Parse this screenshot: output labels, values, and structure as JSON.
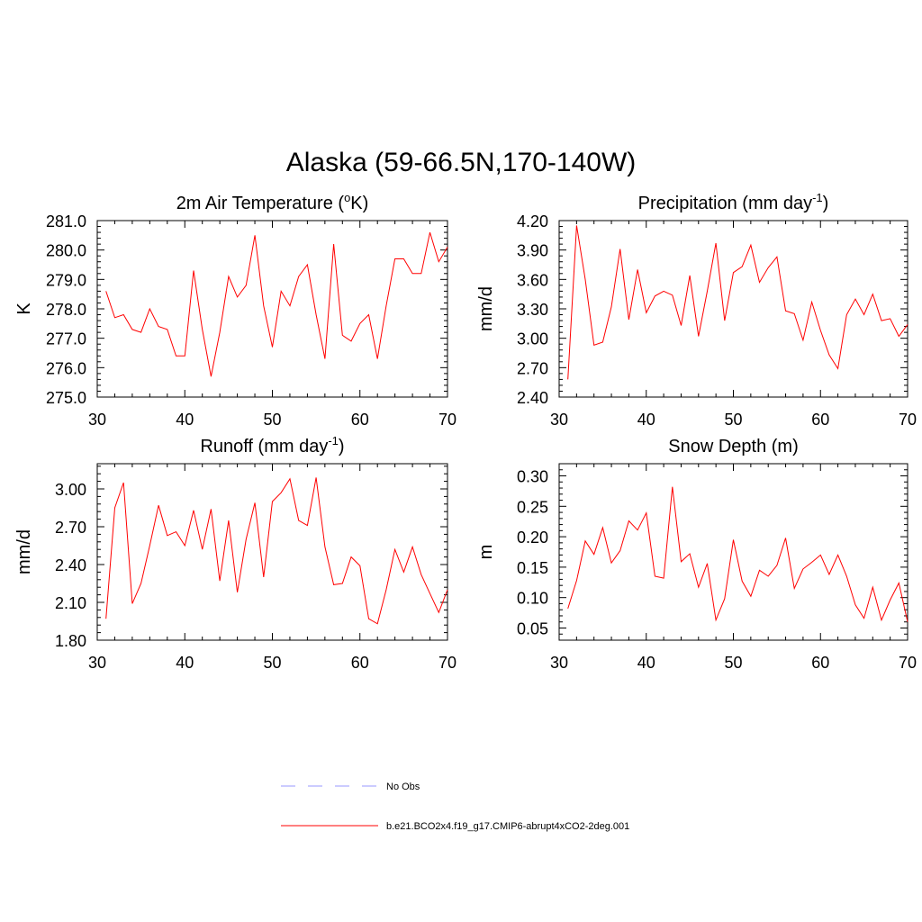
{
  "title": "Alaska (59-66.5N,170-140W)",
  "colors": {
    "series": "#ff0000",
    "obs": "#9999ff"
  },
  "legend": [
    {
      "label": "No Obs",
      "style": "dashed",
      "color": "#9999ff"
    },
    {
      "label": "b.e21.BCO2x4.f19_g17.CMIP6-abrupt4xCO2-2deg.001",
      "style": "solid",
      "color": "#ff0000"
    }
  ],
  "chart_data": [
    {
      "type": "line",
      "title": "2m Air Temperature (",
      "title_sup": "o",
      "title_post": "K)",
      "ylabel": "K",
      "xlim": [
        30,
        70
      ],
      "ylim": [
        275.0,
        281.0
      ],
      "xticks": [
        30,
        40,
        50,
        60,
        70
      ],
      "yticks": [
        "275.0",
        "276.0",
        "277.0",
        "278.0",
        "279.0",
        "280.0",
        "281.0"
      ],
      "x": [
        31,
        32,
        33,
        34,
        35,
        36,
        37,
        38,
        39,
        40,
        41,
        42,
        43,
        44,
        45,
        46,
        47,
        48,
        49,
        50,
        51,
        52,
        53,
        54,
        55,
        56,
        57,
        58,
        59,
        60,
        61,
        62,
        63,
        64,
        65,
        66,
        67,
        68,
        69,
        70
      ],
      "series": [
        {
          "values": [
            278.6,
            277.7,
            277.8,
            277.3,
            277.2,
            278.0,
            277.4,
            277.3,
            276.4,
            276.4,
            279.3,
            277.3,
            275.7,
            277.2,
            279.1,
            278.4,
            278.8,
            280.5,
            278.1,
            276.7,
            278.6,
            278.1,
            279.1,
            279.5,
            277.8,
            276.3,
            280.2,
            277.1,
            276.9,
            277.5,
            277.8,
            276.3,
            278.1,
            279.7,
            279.7,
            279.2,
            279.2,
            280.6,
            279.6,
            280.1
          ]
        }
      ]
    },
    {
      "type": "line",
      "title": "Precipitation (mm day",
      "title_sup": "-1",
      "title_post": ")",
      "ylabel": "mm/d",
      "xlim": [
        30,
        70
      ],
      "ylim": [
        2.4,
        4.2
      ],
      "xticks": [
        30,
        40,
        50,
        60,
        70
      ],
      "yticks": [
        "2.40",
        "2.70",
        "3.00",
        "3.30",
        "3.60",
        "3.90",
        "4.20"
      ],
      "x": [
        31,
        32,
        33,
        34,
        35,
        36,
        37,
        38,
        39,
        40,
        41,
        42,
        43,
        44,
        45,
        46,
        47,
        48,
        49,
        50,
        51,
        52,
        53,
        54,
        55,
        56,
        57,
        58,
        59,
        60,
        61,
        62,
        63,
        64,
        65,
        66,
        67,
        68,
        69,
        70
      ],
      "series": [
        {
          "values": [
            2.58,
            4.15,
            3.6,
            2.93,
            2.96,
            3.32,
            3.91,
            3.19,
            3.7,
            3.26,
            3.43,
            3.48,
            3.44,
            3.13,
            3.64,
            3.02,
            3.48,
            3.97,
            3.18,
            3.67,
            3.73,
            3.95,
            3.57,
            3.72,
            3.83,
            3.28,
            3.25,
            2.98,
            3.37,
            3.08,
            2.83,
            2.69,
            3.24,
            3.4,
            3.24,
            3.45,
            3.18,
            3.2,
            3.02,
            3.14
          ]
        }
      ]
    },
    {
      "type": "line",
      "title": "Runoff (mm day",
      "title_sup": "-1",
      "title_post": ")",
      "ylabel": "mm/d",
      "xlim": [
        30,
        70
      ],
      "ylim": [
        1.8,
        3.2
      ],
      "xticks": [
        30,
        40,
        50,
        60,
        70
      ],
      "yticks": [
        "1.80",
        "2.10",
        "2.40",
        "2.70",
        "3.00"
      ],
      "x": [
        31,
        32,
        33,
        34,
        35,
        36,
        37,
        38,
        39,
        40,
        41,
        42,
        43,
        44,
        45,
        46,
        47,
        48,
        49,
        50,
        51,
        52,
        53,
        54,
        55,
        56,
        57,
        58,
        59,
        60,
        61,
        62,
        63,
        64,
        65,
        66,
        67,
        68,
        69,
        70
      ],
      "series": [
        {
          "values": [
            1.97,
            2.85,
            3.05,
            2.09,
            2.25,
            2.55,
            2.87,
            2.63,
            2.66,
            2.55,
            2.83,
            2.52,
            2.84,
            2.27,
            2.75,
            2.18,
            2.6,
            2.89,
            2.3,
            2.9,
            2.97,
            3.08,
            2.75,
            2.71,
            3.09,
            2.54,
            2.24,
            2.25,
            2.46,
            2.39,
            1.97,
            1.93,
            2.2,
            2.52,
            2.34,
            2.54,
            2.32,
            2.17,
            2.02,
            2.2
          ]
        }
      ]
    },
    {
      "type": "line",
      "title": "Snow Depth (m)",
      "title_sup": "",
      "title_post": "",
      "ylabel": "m",
      "xlim": [
        30,
        70
      ],
      "ylim": [
        0.03,
        0.32
      ],
      "xticks": [
        30,
        40,
        50,
        60,
        70
      ],
      "yticks": [
        "0.05",
        "0.10",
        "0.15",
        "0.20",
        "0.25",
        "0.30"
      ],
      "x": [
        31,
        32,
        33,
        34,
        35,
        36,
        37,
        38,
        39,
        40,
        41,
        42,
        43,
        44,
        45,
        46,
        47,
        48,
        49,
        50,
        51,
        52,
        53,
        54,
        55,
        56,
        57,
        58,
        59,
        60,
        61,
        62,
        63,
        64,
        65,
        66,
        67,
        68,
        69,
        70
      ],
      "series": [
        {
          "values": [
            0.082,
            0.128,
            0.193,
            0.171,
            0.215,
            0.157,
            0.177,
            0.226,
            0.211,
            0.239,
            0.135,
            0.132,
            0.282,
            0.159,
            0.172,
            0.117,
            0.156,
            0.063,
            0.098,
            0.195,
            0.127,
            0.102,
            0.145,
            0.135,
            0.153,
            0.198,
            0.115,
            0.147,
            0.158,
            0.17,
            0.138,
            0.17,
            0.135,
            0.088,
            0.066,
            0.117,
            0.063,
            0.096,
            0.124,
            0.06
          ]
        }
      ]
    }
  ]
}
